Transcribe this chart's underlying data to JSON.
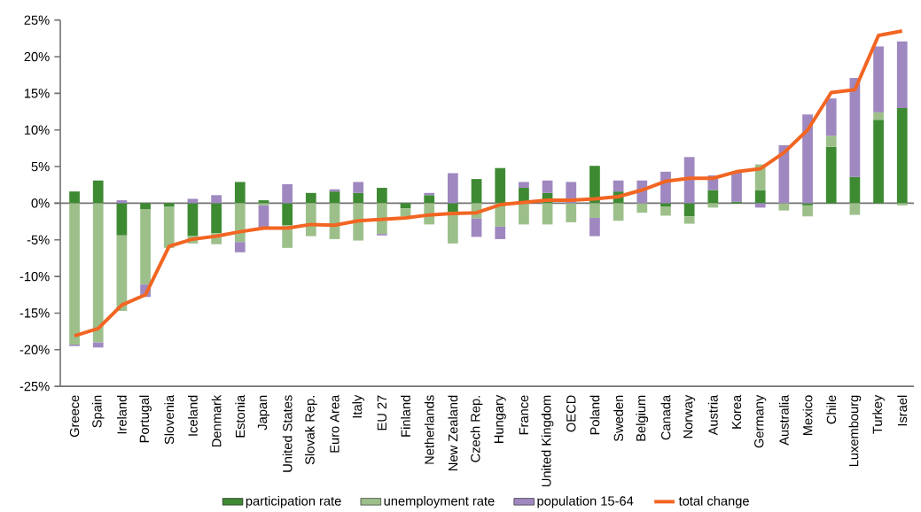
{
  "chart_data": {
    "type": "bar",
    "stacked": true,
    "categories": [
      "Greece",
      "Spain",
      "Ireland",
      "Portugal",
      "Slovenia",
      "Iceland",
      "Denmark",
      "Estonia",
      "Japan",
      "United States",
      "Slovak Rep.",
      "Euro Area",
      "Italy",
      "EU 27",
      "Finland",
      "Netherlands",
      "New Zealand",
      "Czech Rep.",
      "Hungary",
      "France",
      "United Kingdom",
      "OECD",
      "Poland",
      "Sweden",
      "Belgium",
      "Canada",
      "Norway",
      "Austria",
      "Korea",
      "Germany",
      "Australia",
      "Mexico",
      "Chile",
      "Luxembourg",
      "Turkey",
      "Israel"
    ],
    "series": [
      {
        "name": "participation rate",
        "color": "#3e8a33",
        "values": [
          1.6,
          3.1,
          -4.4,
          -0.8,
          -0.5,
          -4.5,
          -4.1,
          2.9,
          0.4,
          -3.0,
          1.4,
          1.6,
          1.4,
          2.1,
          -0.7,
          1.1,
          -1.2,
          3.3,
          4.8,
          2.1,
          1.4,
          0.0,
          5.1,
          1.6,
          0.0,
          -0.5,
          -1.8,
          1.8,
          0.2,
          1.8,
          0.0,
          -0.3,
          7.7,
          3.6,
          11.4,
          13.0
        ]
      },
      {
        "name": "unemployment rate",
        "color": "#9dc08b",
        "values": [
          -19.3,
          -19.0,
          -10.3,
          -10.3,
          -5.6,
          -1.0,
          -1.5,
          -5.3,
          -0.3,
          -3.1,
          -4.5,
          -4.9,
          -5.1,
          -4.2,
          -1.1,
          -2.9,
          -4.3,
          -2.1,
          -3.2,
          -2.9,
          -2.9,
          -2.6,
          -2.0,
          -2.4,
          -1.3,
          -1.2,
          -1.0,
          -0.6,
          0.0,
          3.5,
          -1.0,
          -1.5,
          1.5,
          -1.6,
          1.0,
          -0.3
        ]
      },
      {
        "name": "population 15-64",
        "color": "#9f88c0",
        "values": [
          -0.2,
          -0.7,
          0.4,
          -1.7,
          0.0,
          0.6,
          1.1,
          -1.4,
          -3.2,
          2.6,
          0.0,
          0.3,
          1.5,
          -0.2,
          0.0,
          0.3,
          4.1,
          -2.5,
          -1.7,
          0.8,
          1.7,
          2.9,
          -2.5,
          1.5,
          3.1,
          4.3,
          6.3,
          2.0,
          4.0,
          -0.6,
          7.9,
          12.1,
          5.1,
          13.5,
          9.0,
          9.1
        ]
      },
      {
        "name": "total change",
        "type": "line",
        "color": "#f26522",
        "values": [
          -18.1,
          -17.1,
          -13.9,
          -12.5,
          -5.9,
          -4.9,
          -4.5,
          -3.9,
          -3.4,
          -3.4,
          -2.9,
          -3.0,
          -2.4,
          -2.2,
          -2.0,
          -1.6,
          -1.4,
          -1.3,
          -0.2,
          0.1,
          0.4,
          0.4,
          0.6,
          0.9,
          1.8,
          3.0,
          3.4,
          3.4,
          4.3,
          4.7,
          6.9,
          10.0,
          15.1,
          15.5,
          22.9,
          23.5
        ]
      }
    ],
    "ylim": [
      -25,
      25
    ],
    "yticks": [
      {
        "value": -25,
        "label": "-25%"
      },
      {
        "value": -20,
        "label": "-20%"
      },
      {
        "value": -15,
        "label": "-15%"
      },
      {
        "value": -10,
        "label": "-10%"
      },
      {
        "value": -5,
        "label": "-5%"
      },
      {
        "value": 0,
        "label": "0%"
      },
      {
        "value": 5,
        "label": "5%"
      },
      {
        "value": 10,
        "label": "10%"
      },
      {
        "value": 15,
        "label": "15%"
      },
      {
        "value": 20,
        "label": "20%"
      },
      {
        "value": 25,
        "label": "25%"
      }
    ],
    "legend": "bottom"
  }
}
